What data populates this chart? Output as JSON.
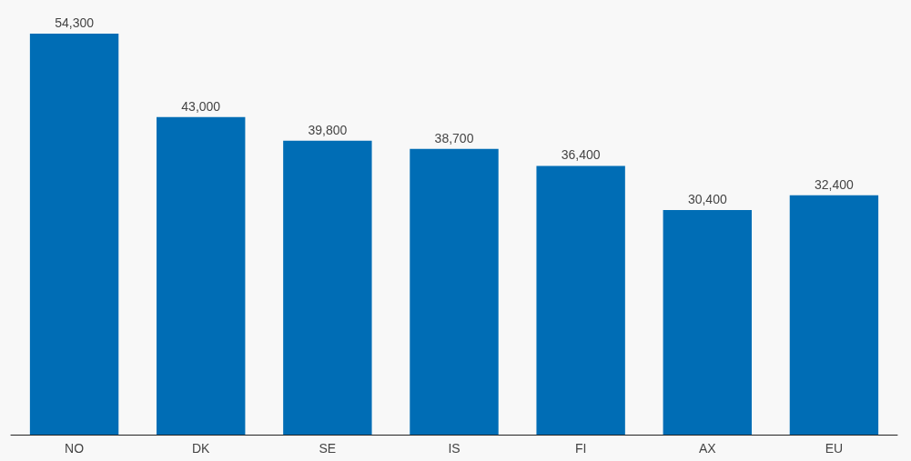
{
  "chart_data": {
    "type": "bar",
    "categories": [
      "NO",
      "DK",
      "SE",
      "IS",
      "FI",
      "AX",
      "EU"
    ],
    "values": [
      54300,
      43000,
      39800,
      38700,
      36400,
      30400,
      32400
    ],
    "value_labels": [
      "54,300",
      "43,000",
      "39,800",
      "38,700",
      "36,400",
      "30,400",
      "32,400"
    ],
    "color": "#006db5"
  }
}
